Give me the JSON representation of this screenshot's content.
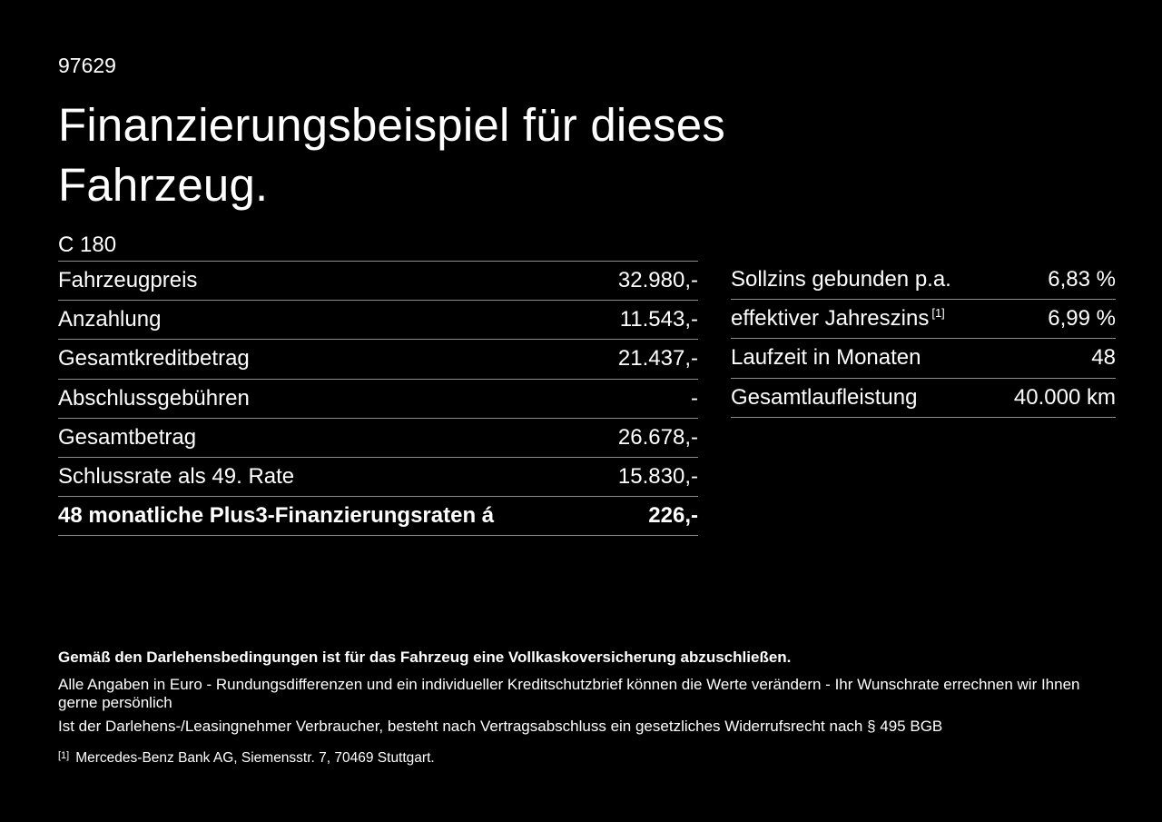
{
  "header": {
    "doc_number": "97629",
    "title": "Finanzierungsbeispiel für dieses Fahrzeug.",
    "model": "C 180"
  },
  "tables": {
    "left": {
      "rows": [
        {
          "label": "Fahrzeugpreis",
          "value": "32.980,-"
        },
        {
          "label": "Anzahlung",
          "value": "11.543,-"
        },
        {
          "label": "Gesamtkreditbetrag",
          "value": "21.437,-"
        },
        {
          "label": "Abschlussgebühren",
          "value": "-"
        },
        {
          "label": "Gesamtbetrag",
          "value": "26.678,-"
        },
        {
          "label": "Schlussrate als 49. Rate",
          "value": "15.830,-"
        },
        {
          "label": "48 monatliche Plus3-Finanzierungsraten á",
          "value": "226,-"
        }
      ]
    },
    "right": {
      "rows": [
        {
          "label": "Sollzins gebunden p.a.",
          "value": "6,83 %"
        },
        {
          "label": "effektiver Jahreszins",
          "superscript": "[1]",
          "value": "6,99 %"
        },
        {
          "label": "Laufzeit in Monaten",
          "value": "48"
        },
        {
          "label": "Gesamtlaufleistung",
          "value": "40.000 km"
        }
      ]
    }
  },
  "footer": {
    "bold_note": "Gemäß den Darlehensbedingungen ist für das Fahrzeug eine Vollkaskoversicherung abzuschließen.",
    "note1": "Alle Angaben in Euro - Rundungsdifferenzen und ein individueller Kreditschutzbrief können die Werte verändern - Ihr Wunschrate errechnen wir Ihnen gerne persönlich",
    "note2": "Ist der Darlehens-/Leasingnehmer Verbraucher, besteht nach Vertragsabschluss ein gesetzliches Widerrufsrecht nach § 495 BGB",
    "footnote_marker": "[1]",
    "footnote_text": "Mercedes-Benz Bank AG, Siemensstr. 7, 70469 Stuttgart."
  },
  "colors": {
    "background": "#000000",
    "text": "#ffffff",
    "divider": "#8c8c8c"
  }
}
